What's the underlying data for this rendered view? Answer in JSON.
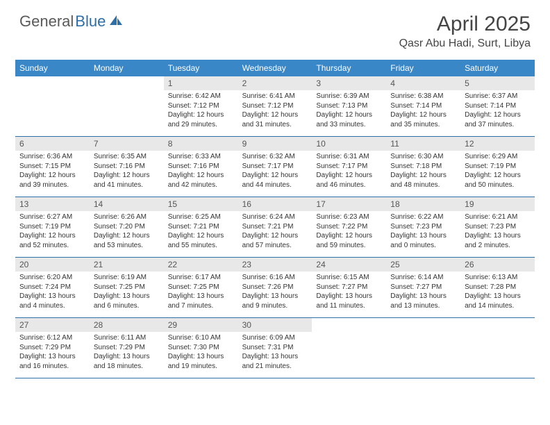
{
  "logo": {
    "part1": "General",
    "part2": "Blue"
  },
  "title": "April 2025",
  "location": "Qasr Abu Hadi, Surt, Libya",
  "colors": {
    "header_bg": "#3a87c8",
    "header_text": "#ffffff",
    "daynum_bg": "#e8e8e8",
    "daynum_text": "#555555",
    "border": "#2f6fa8",
    "logo_gray": "#5a5a5a",
    "logo_blue": "#2f6fa8",
    "title_color": "#454545"
  },
  "dayNames": [
    "Sunday",
    "Monday",
    "Tuesday",
    "Wednesday",
    "Thursday",
    "Friday",
    "Saturday"
  ],
  "weeks": [
    [
      {
        "blank": true
      },
      {
        "blank": true
      },
      {
        "n": "1",
        "sr": "Sunrise: 6:42 AM",
        "ss": "Sunset: 7:12 PM",
        "d1": "Daylight: 12 hours",
        "d2": "and 29 minutes."
      },
      {
        "n": "2",
        "sr": "Sunrise: 6:41 AM",
        "ss": "Sunset: 7:12 PM",
        "d1": "Daylight: 12 hours",
        "d2": "and 31 minutes."
      },
      {
        "n": "3",
        "sr": "Sunrise: 6:39 AM",
        "ss": "Sunset: 7:13 PM",
        "d1": "Daylight: 12 hours",
        "d2": "and 33 minutes."
      },
      {
        "n": "4",
        "sr": "Sunrise: 6:38 AM",
        "ss": "Sunset: 7:14 PM",
        "d1": "Daylight: 12 hours",
        "d2": "and 35 minutes."
      },
      {
        "n": "5",
        "sr": "Sunrise: 6:37 AM",
        "ss": "Sunset: 7:14 PM",
        "d1": "Daylight: 12 hours",
        "d2": "and 37 minutes."
      }
    ],
    [
      {
        "n": "6",
        "sr": "Sunrise: 6:36 AM",
        "ss": "Sunset: 7:15 PM",
        "d1": "Daylight: 12 hours",
        "d2": "and 39 minutes."
      },
      {
        "n": "7",
        "sr": "Sunrise: 6:35 AM",
        "ss": "Sunset: 7:16 PM",
        "d1": "Daylight: 12 hours",
        "d2": "and 41 minutes."
      },
      {
        "n": "8",
        "sr": "Sunrise: 6:33 AM",
        "ss": "Sunset: 7:16 PM",
        "d1": "Daylight: 12 hours",
        "d2": "and 42 minutes."
      },
      {
        "n": "9",
        "sr": "Sunrise: 6:32 AM",
        "ss": "Sunset: 7:17 PM",
        "d1": "Daylight: 12 hours",
        "d2": "and 44 minutes."
      },
      {
        "n": "10",
        "sr": "Sunrise: 6:31 AM",
        "ss": "Sunset: 7:17 PM",
        "d1": "Daylight: 12 hours",
        "d2": "and 46 minutes."
      },
      {
        "n": "11",
        "sr": "Sunrise: 6:30 AM",
        "ss": "Sunset: 7:18 PM",
        "d1": "Daylight: 12 hours",
        "d2": "and 48 minutes."
      },
      {
        "n": "12",
        "sr": "Sunrise: 6:29 AM",
        "ss": "Sunset: 7:19 PM",
        "d1": "Daylight: 12 hours",
        "d2": "and 50 minutes."
      }
    ],
    [
      {
        "n": "13",
        "sr": "Sunrise: 6:27 AM",
        "ss": "Sunset: 7:19 PM",
        "d1": "Daylight: 12 hours",
        "d2": "and 52 minutes."
      },
      {
        "n": "14",
        "sr": "Sunrise: 6:26 AM",
        "ss": "Sunset: 7:20 PM",
        "d1": "Daylight: 12 hours",
        "d2": "and 53 minutes."
      },
      {
        "n": "15",
        "sr": "Sunrise: 6:25 AM",
        "ss": "Sunset: 7:21 PM",
        "d1": "Daylight: 12 hours",
        "d2": "and 55 minutes."
      },
      {
        "n": "16",
        "sr": "Sunrise: 6:24 AM",
        "ss": "Sunset: 7:21 PM",
        "d1": "Daylight: 12 hours",
        "d2": "and 57 minutes."
      },
      {
        "n": "17",
        "sr": "Sunrise: 6:23 AM",
        "ss": "Sunset: 7:22 PM",
        "d1": "Daylight: 12 hours",
        "d2": "and 59 minutes."
      },
      {
        "n": "18",
        "sr": "Sunrise: 6:22 AM",
        "ss": "Sunset: 7:23 PM",
        "d1": "Daylight: 13 hours",
        "d2": "and 0 minutes."
      },
      {
        "n": "19",
        "sr": "Sunrise: 6:21 AM",
        "ss": "Sunset: 7:23 PM",
        "d1": "Daylight: 13 hours",
        "d2": "and 2 minutes."
      }
    ],
    [
      {
        "n": "20",
        "sr": "Sunrise: 6:20 AM",
        "ss": "Sunset: 7:24 PM",
        "d1": "Daylight: 13 hours",
        "d2": "and 4 minutes."
      },
      {
        "n": "21",
        "sr": "Sunrise: 6:19 AM",
        "ss": "Sunset: 7:25 PM",
        "d1": "Daylight: 13 hours",
        "d2": "and 6 minutes."
      },
      {
        "n": "22",
        "sr": "Sunrise: 6:17 AM",
        "ss": "Sunset: 7:25 PM",
        "d1": "Daylight: 13 hours",
        "d2": "and 7 minutes."
      },
      {
        "n": "23",
        "sr": "Sunrise: 6:16 AM",
        "ss": "Sunset: 7:26 PM",
        "d1": "Daylight: 13 hours",
        "d2": "and 9 minutes."
      },
      {
        "n": "24",
        "sr": "Sunrise: 6:15 AM",
        "ss": "Sunset: 7:27 PM",
        "d1": "Daylight: 13 hours",
        "d2": "and 11 minutes."
      },
      {
        "n": "25",
        "sr": "Sunrise: 6:14 AM",
        "ss": "Sunset: 7:27 PM",
        "d1": "Daylight: 13 hours",
        "d2": "and 13 minutes."
      },
      {
        "n": "26",
        "sr": "Sunrise: 6:13 AM",
        "ss": "Sunset: 7:28 PM",
        "d1": "Daylight: 13 hours",
        "d2": "and 14 minutes."
      }
    ],
    [
      {
        "n": "27",
        "sr": "Sunrise: 6:12 AM",
        "ss": "Sunset: 7:29 PM",
        "d1": "Daylight: 13 hours",
        "d2": "and 16 minutes."
      },
      {
        "n": "28",
        "sr": "Sunrise: 6:11 AM",
        "ss": "Sunset: 7:29 PM",
        "d1": "Daylight: 13 hours",
        "d2": "and 18 minutes."
      },
      {
        "n": "29",
        "sr": "Sunrise: 6:10 AM",
        "ss": "Sunset: 7:30 PM",
        "d1": "Daylight: 13 hours",
        "d2": "and 19 minutes."
      },
      {
        "n": "30",
        "sr": "Sunrise: 6:09 AM",
        "ss": "Sunset: 7:31 PM",
        "d1": "Daylight: 13 hours",
        "d2": "and 21 minutes."
      },
      {
        "blank": true
      },
      {
        "blank": true
      },
      {
        "blank": true
      }
    ]
  ]
}
